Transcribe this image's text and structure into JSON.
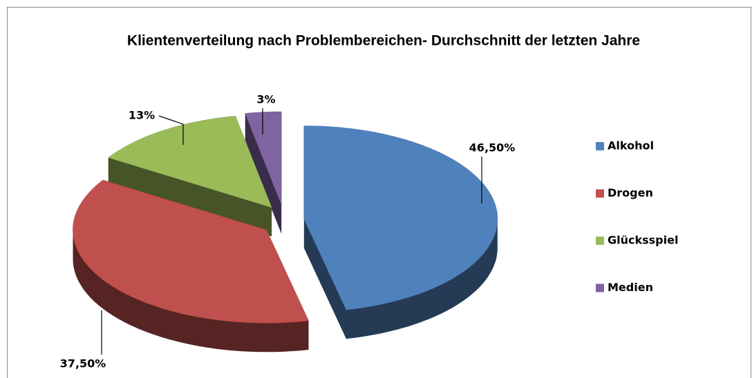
{
  "chart_data": {
    "type": "pie",
    "title": "Klientenverteilung nach Problembereichen- Durchschnitt der letzten Jahre",
    "categories": [
      "Alkohol",
      "Drogen",
      "Glücksspiel",
      "Medien"
    ],
    "values": [
      46.5,
      37.5,
      13,
      3
    ],
    "value_labels": [
      "46,50%",
      "37,50%",
      "13%",
      "3%"
    ],
    "colors": [
      "#4f81bd",
      "#c0504d",
      "#9bbb59",
      "#8064a2"
    ],
    "legend": "right"
  }
}
